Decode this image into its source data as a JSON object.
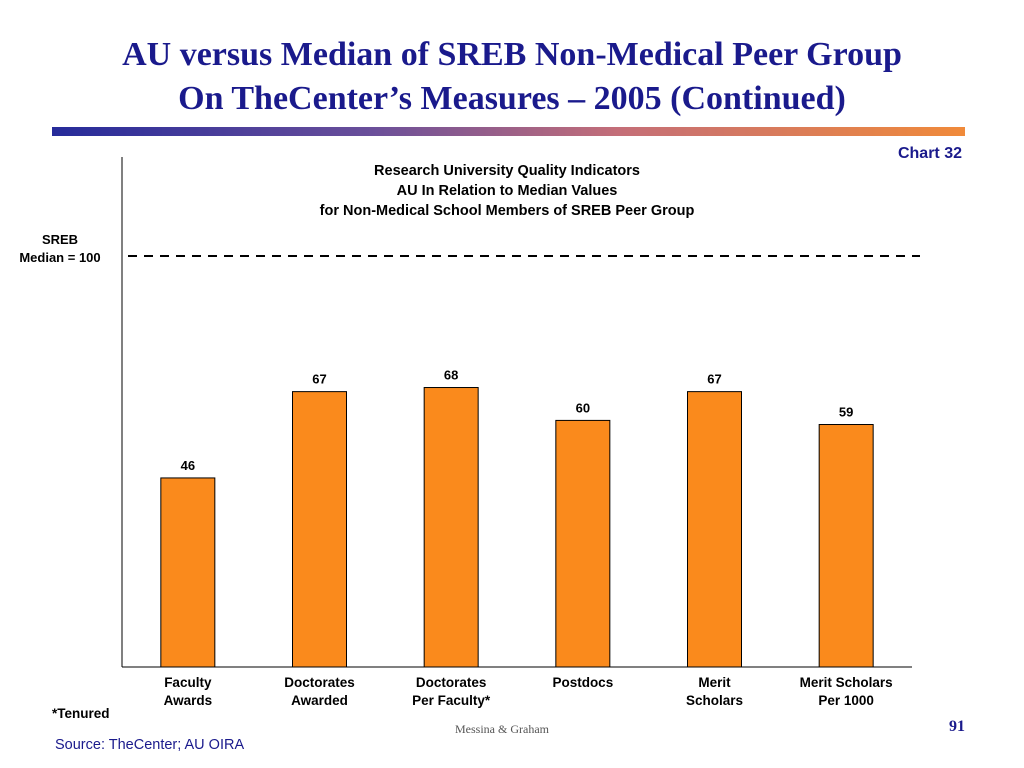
{
  "slide": {
    "title_line1": "AU versus Median of SREB Non-Medical Peer Group",
    "title_line2": "On TheCenter’s Measures – 2005 (Continued)",
    "chart_number": "Chart 32",
    "footnote": "*Tenured",
    "credit": "Messina & Graham",
    "page_number": "91",
    "source": "Source:  TheCenter; AU OIRA"
  },
  "colors": {
    "title": "#1a1a8c",
    "bar_fill": "#fa8a1c",
    "bar_stroke": "#000000",
    "reference_line": "#000000"
  },
  "chart_data": {
    "type": "bar",
    "title_lines": [
      "Research University Quality Indicators",
      "AU In Relation to Median Values",
      "for Non-Medical School Members of SREB Peer Group"
    ],
    "categories": [
      [
        "Faculty",
        "Awards"
      ],
      [
        "Doctorates",
        "Awarded"
      ],
      [
        "Doctorates",
        "Per Faculty*"
      ],
      [
        "Postdocs"
      ],
      [
        "Merit",
        "Scholars"
      ],
      [
        "Merit Scholars",
        "Per 1000"
      ]
    ],
    "values": [
      46,
      67,
      68,
      60,
      67,
      59
    ],
    "data_labels": [
      "46",
      "67",
      "68",
      "60",
      "67",
      "59"
    ],
    "reference_line": {
      "value": 100,
      "label_lines": [
        "SREB",
        "Median = 100"
      ],
      "style": "dashed"
    },
    "ylim": [
      0,
      120
    ],
    "grid": false,
    "legend": "none"
  }
}
